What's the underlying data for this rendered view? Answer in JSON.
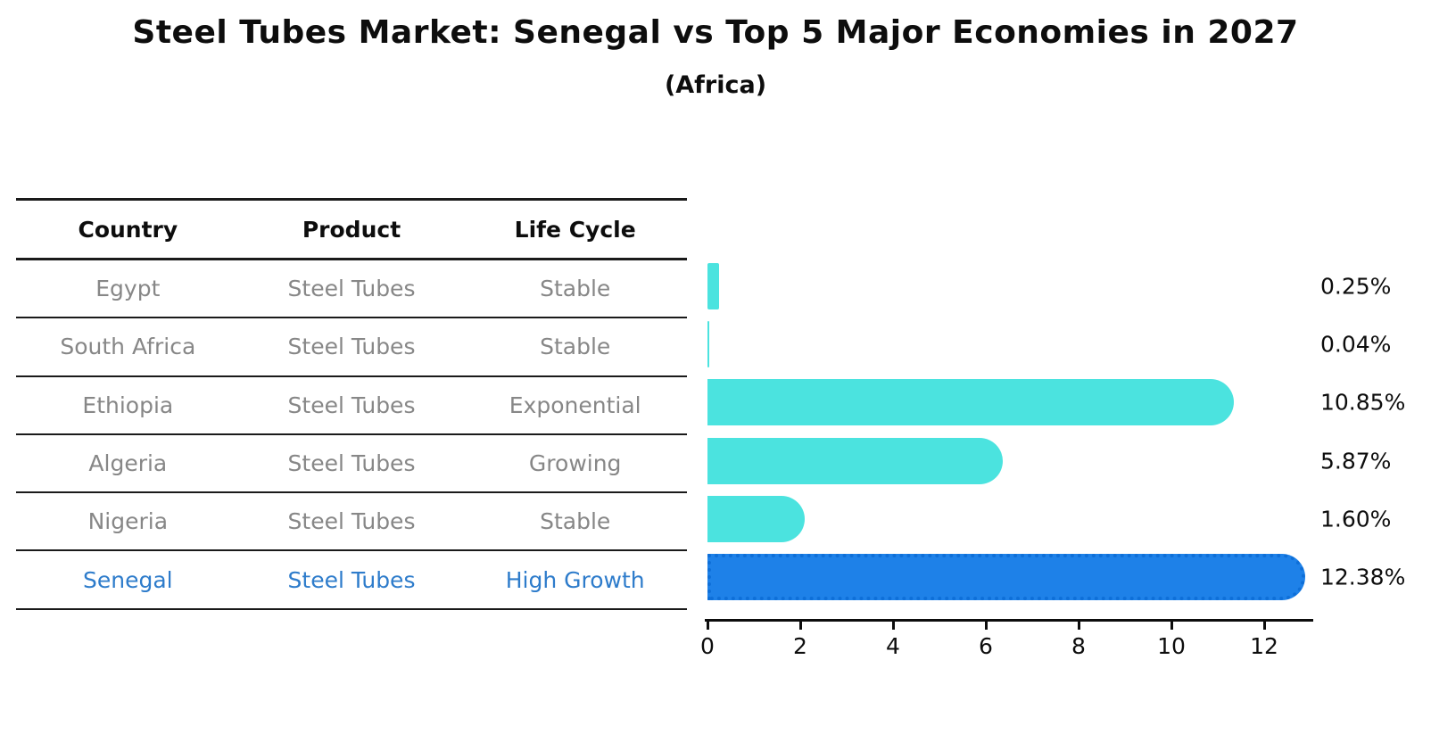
{
  "title": "Steel Tubes Market: Senegal vs Top 5 Major Economies in 2027",
  "subtitle": "(Africa)",
  "colors": {
    "bar_default": "#4BE3DF",
    "bar_highlight": "#1E81E8",
    "bar_highlight_edge": "#0E6FD8",
    "highlight_text": "#2E7CCB",
    "cell_text": "#878787",
    "heading_text": "#0d0d0d"
  },
  "table": {
    "headers": [
      "Country",
      "Product",
      "Life Cycle"
    ],
    "rows": [
      {
        "country": "Egypt",
        "product": "Steel Tubes",
        "life_cycle": "Stable",
        "highlight": false
      },
      {
        "country": "South Africa",
        "product": "Steel Tubes",
        "life_cycle": "Stable",
        "highlight": false
      },
      {
        "country": "Ethiopia",
        "product": "Steel Tubes",
        "life_cycle": "Exponential",
        "highlight": false
      },
      {
        "country": "Algeria",
        "product": "Steel Tubes",
        "life_cycle": "Growing",
        "highlight": false
      },
      {
        "country": "Nigeria",
        "product": "Steel Tubes",
        "life_cycle": "Stable",
        "highlight": false
      },
      {
        "country": "Senegal",
        "product": "Steel Tubes",
        "life_cycle": "High Growth",
        "highlight": true
      }
    ]
  },
  "chart_data": {
    "type": "bar",
    "orientation": "horizontal",
    "title": "Steel Tubes Market: Senegal vs Top 5 Major Economies in 2027",
    "subtitle": "(Africa)",
    "categories": [
      "Egypt",
      "South Africa",
      "Ethiopia",
      "Algeria",
      "Nigeria",
      "Senegal"
    ],
    "values": [
      0.25,
      0.04,
      10.85,
      5.87,
      1.6,
      12.38
    ],
    "value_labels": [
      "0.25%",
      "0.04%",
      "10.85%",
      "5.87%",
      "1.60%",
      "12.38%"
    ],
    "highlight_index": 5,
    "xlabel": "",
    "ylabel": "",
    "xlim": [
      0,
      13
    ],
    "xticks": [
      0,
      2,
      4,
      6,
      8,
      10,
      12
    ],
    "grid": false,
    "legend": false
  }
}
